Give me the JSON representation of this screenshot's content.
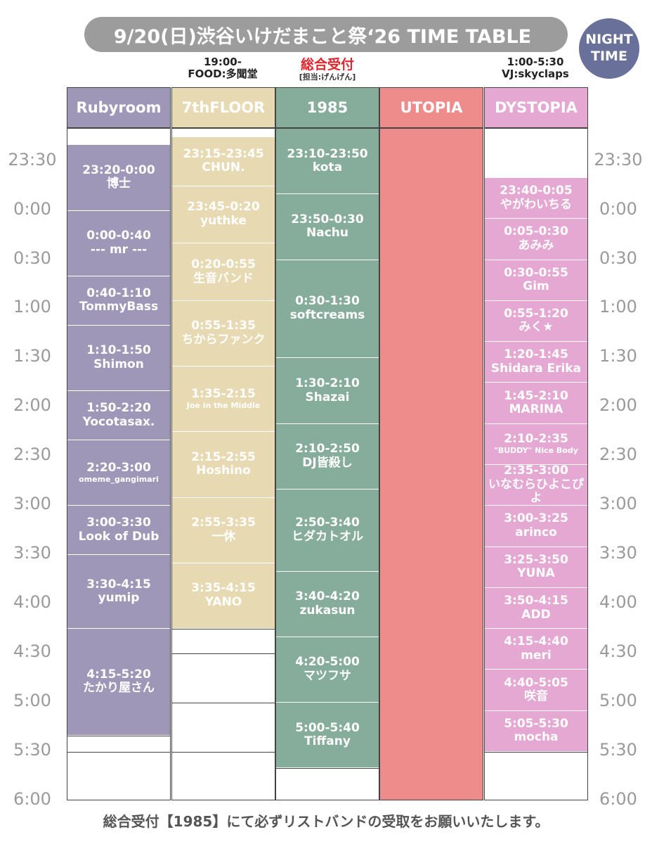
{
  "title": "9/20(日)渋谷いけだまこと祭‘26 TIME TABLE",
  "badge": {
    "line1": "NIGHT",
    "line2": "TIME"
  },
  "notes": {
    "food_time": "19:00-",
    "food": "FOOD:多聞堂",
    "reception": "総合受付",
    "reception_staff": "[担当:げんげん]",
    "vj_time": "1:00-5:30",
    "vj": "VJ:skyclaps"
  },
  "time_labels": [
    "23:30",
    "0:00",
    "0:30",
    "1:00",
    "1:30",
    "2:00",
    "2:30",
    "3:00",
    "3:30",
    "4:00",
    "4:30",
    "5:00",
    "5:30",
    "6:00"
  ],
  "colors": {
    "rubyroom": "#9e97b7",
    "seventh": "#e7d9b1",
    "nineteen": "#86ad9b",
    "utopia": "#ee8c8c",
    "dystopia": "#e4a8d2"
  },
  "columns": [
    {
      "name": "Rubyroom",
      "slots": [
        {
          "time": "23:20-0:00",
          "artist": "博士"
        },
        {
          "time": "0:00-0:40",
          "artist": "--- mr ---"
        },
        {
          "time": "0:40-1:10",
          "artist": "TommyBass"
        },
        {
          "time": "1:10-1:50",
          "artist": "Shimon"
        },
        {
          "time": "1:50-2:20",
          "artist": "Yocotasax."
        },
        {
          "time": "2:20-3:00",
          "artist": "omeme_gangimari"
        },
        {
          "time": "3:00-3:30",
          "artist": "Look of Dub"
        },
        {
          "time": "3:30-4:15",
          "artist": "yumip"
        },
        {
          "time": "4:15-5:20",
          "artist": "たかり屋さん"
        }
      ]
    },
    {
      "name": "7thFLOOR",
      "slots": [
        {
          "time": "23:15-23:45",
          "artist": "CHUN."
        },
        {
          "time": "23:45-0:20",
          "artist": "yuthke"
        },
        {
          "time": "0:20-0:55",
          "artist": "生音バンド"
        },
        {
          "time": "0:55-1:35",
          "artist": "ちからファンク"
        },
        {
          "time": "1:35-2:15",
          "artist": "Joe in the Middle"
        },
        {
          "time": "2:15-2:55",
          "artist": "Hoshino"
        },
        {
          "time": "2:55-3:35",
          "artist": "一休"
        },
        {
          "time": "3:35-4:15",
          "artist": "YANO"
        }
      ]
    },
    {
      "name": "1985",
      "slots": [
        {
          "time": "23:10-23:50",
          "artist": "kota"
        },
        {
          "time": "23:50-0:30",
          "artist": "Nachu"
        },
        {
          "time": "0:30-1:30",
          "artist": "softcreams"
        },
        {
          "time": "1:30-2:10",
          "artist": "Shazai"
        },
        {
          "time": "2:10-2:50",
          "artist": "DJ皆殺し"
        },
        {
          "time": "2:50-3:40",
          "artist": "ヒダカトオル"
        },
        {
          "time": "3:40-4:20",
          "artist": "zukasun"
        },
        {
          "time": "4:20-5:00",
          "artist": "マツフサ"
        },
        {
          "time": "5:00-5:40",
          "artist": "Tiffany"
        }
      ]
    },
    {
      "name": "UTOPIA",
      "slots": []
    },
    {
      "name": "DYSTOPIA",
      "slots": [
        {
          "time": "23:40-0:05",
          "artist": "やがわいちる"
        },
        {
          "time": "0:05-0:30",
          "artist": "あみみ"
        },
        {
          "time": "0:30-0:55",
          "artist": "Gim"
        },
        {
          "time": "0:55-1:20",
          "artist": "みく★"
        },
        {
          "time": "1:20-1:45",
          "artist": "Shidara Erika"
        },
        {
          "time": "1:45-2:10",
          "artist": "MARINA"
        },
        {
          "time": "2:10-2:35",
          "artist": "\"BUDDY\" Nice Body"
        },
        {
          "time": "2:35-3:00",
          "artist": "いなむらひよこぴよ"
        },
        {
          "time": "3:00-3:25",
          "artist": "arinco"
        },
        {
          "time": "3:25-3:50",
          "artist": "YUNA"
        },
        {
          "time": "3:50-4:15",
          "artist": "ADD"
        },
        {
          "time": "4:15-4:40",
          "artist": "meri"
        },
        {
          "time": "4:40-5:05",
          "artist": "咲音"
        },
        {
          "time": "5:05-5:30",
          "artist": "mocha"
        }
      ]
    }
  ],
  "footer": "総合受付【1985】にて必ずリストバンドの受取をお願いいたします。"
}
